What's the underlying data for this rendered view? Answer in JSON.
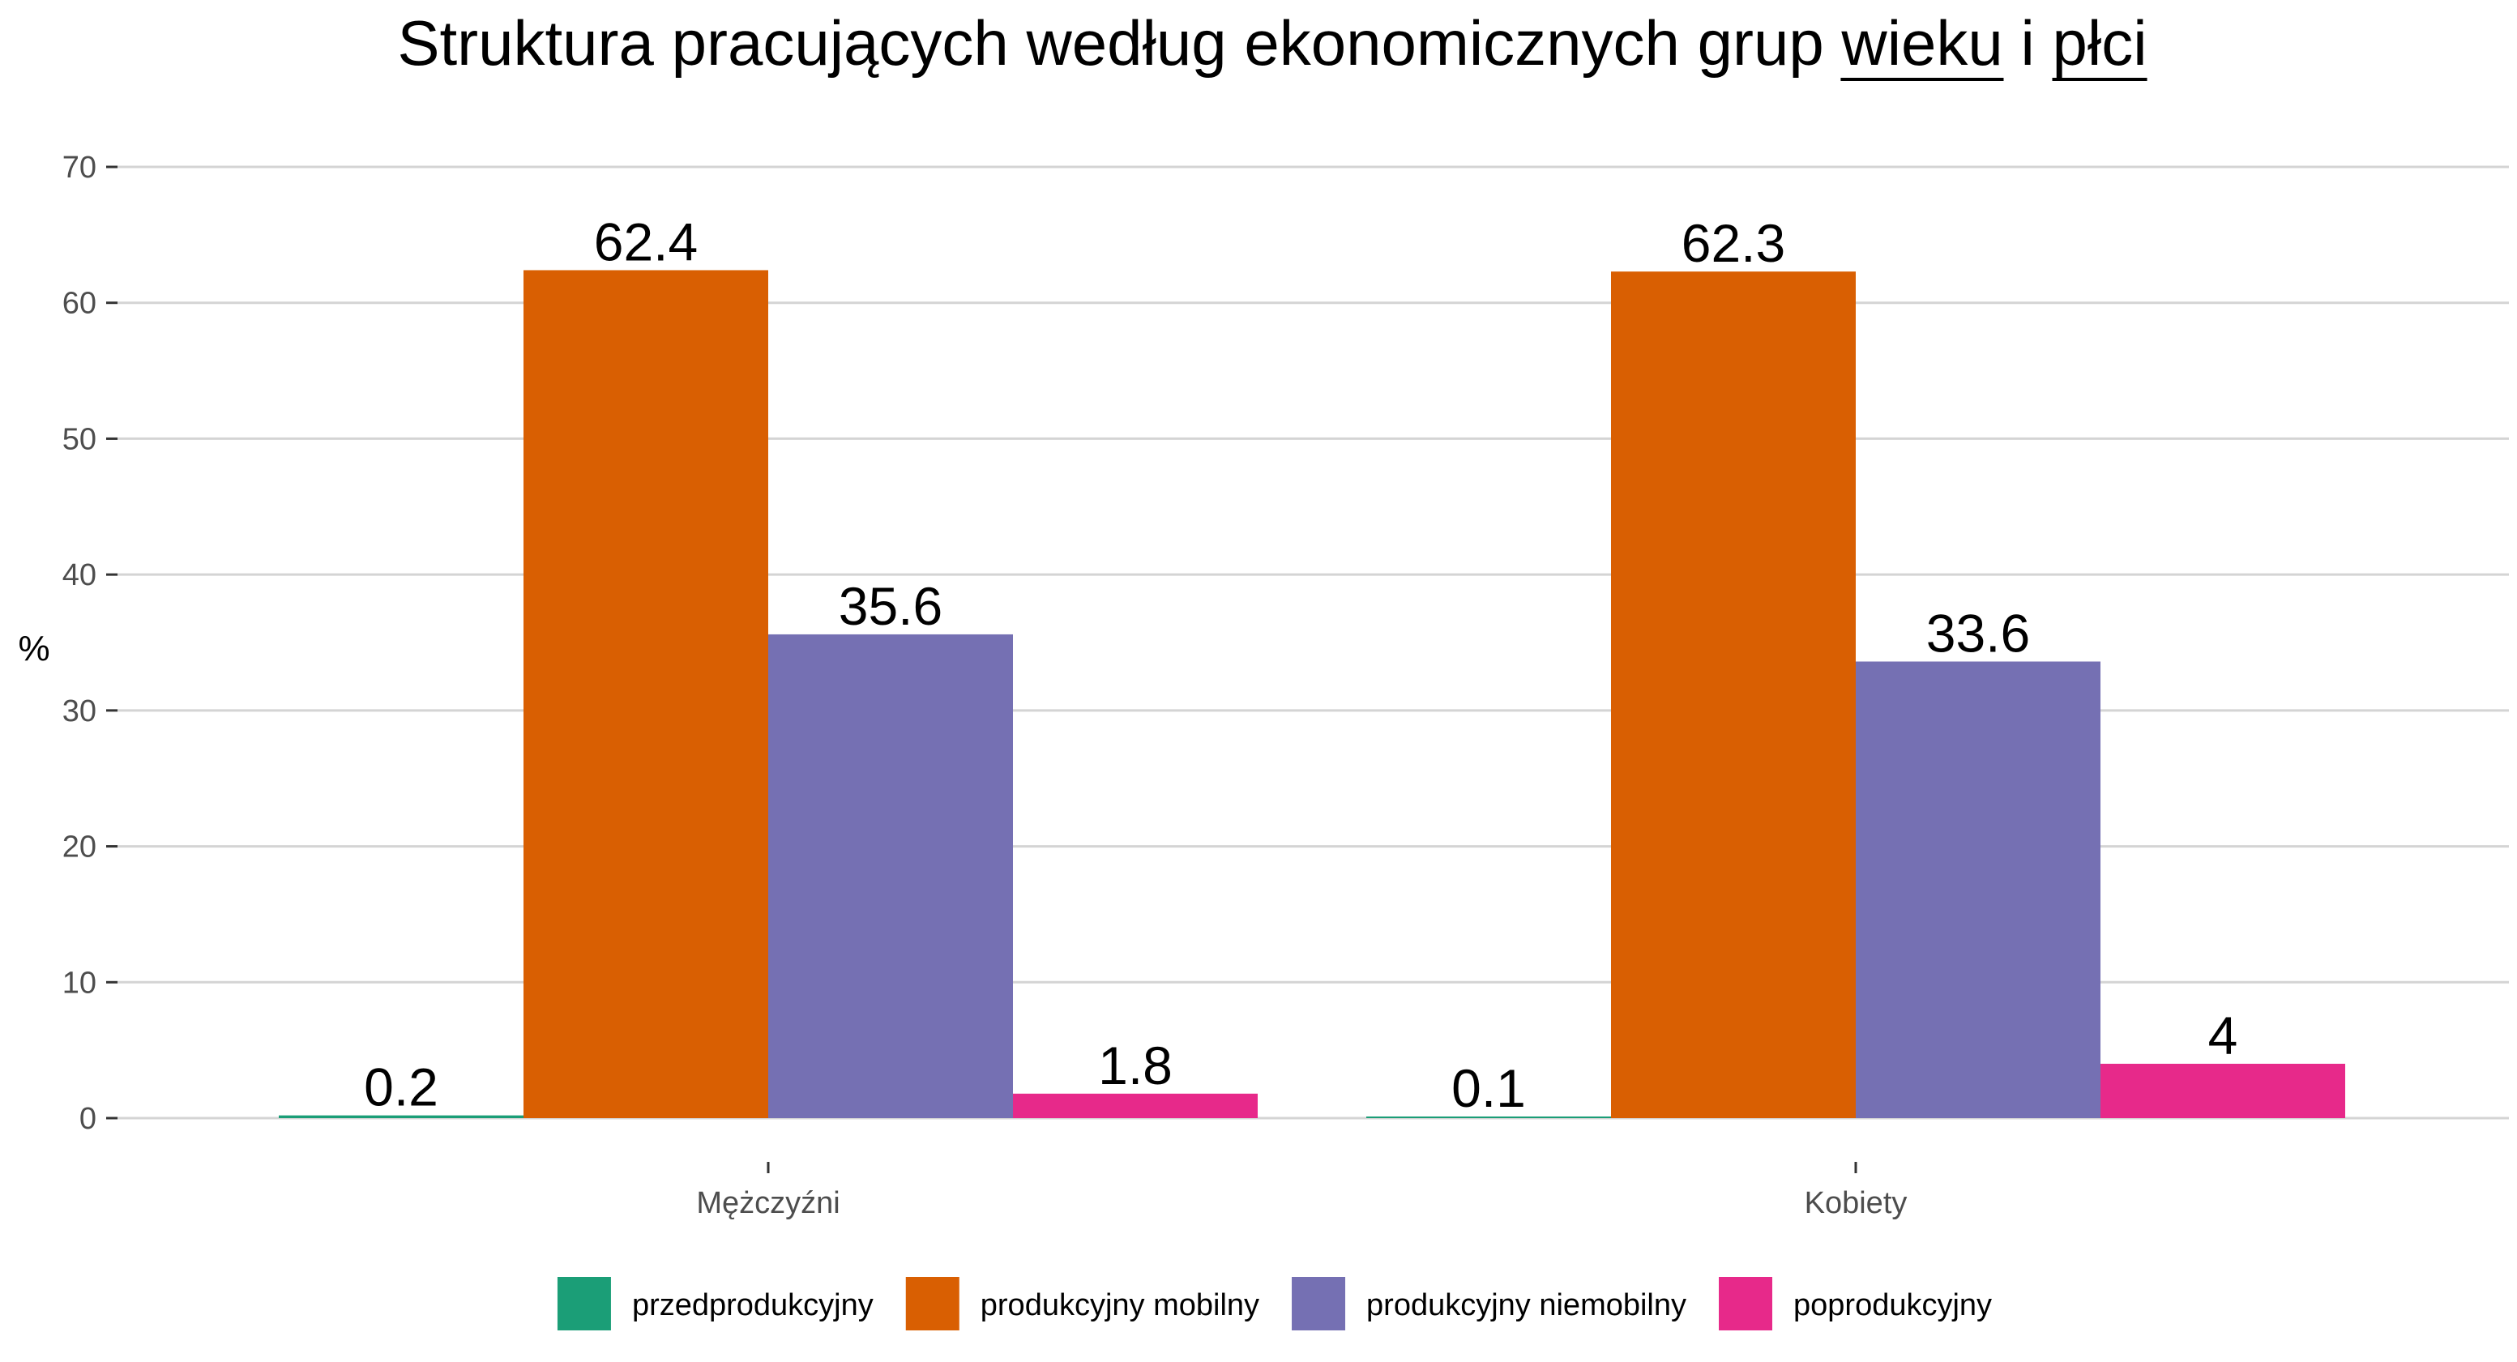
{
  "chart_data": {
    "type": "bar",
    "title": "Struktura pracujących według ekonomicznych grup wieku i płci",
    "title_underlined_words": [
      "wieku",
      "płci"
    ],
    "xlabel": "",
    "ylabel": "%",
    "ylim": [
      0,
      70
    ],
    "yticks": [
      0,
      10,
      20,
      30,
      40,
      50,
      60,
      70
    ],
    "grid": true,
    "legend_position": "bottom",
    "categories": [
      "Mężczyźni",
      "Kobiety"
    ],
    "series": [
      {
        "name": "przedprodukcyjny",
        "color": "#1b9e77",
        "values": [
          0.2,
          0.1
        ],
        "labels": [
          "0.2",
          "0.1"
        ]
      },
      {
        "name": "produkcyjny mobilny",
        "color": "#d95f02",
        "values": [
          62.4,
          62.3
        ],
        "labels": [
          "62.4",
          "62.3"
        ]
      },
      {
        "name": "produkcyjny niemobilny",
        "color": "#7570b3",
        "values": [
          35.6,
          33.6
        ],
        "labels": [
          "35.6",
          "33.6"
        ]
      },
      {
        "name": "poprodukcyjny",
        "color": "#e7298a",
        "values": [
          1.8,
          4
        ],
        "labels": [
          "1.8",
          "4"
        ]
      }
    ]
  }
}
